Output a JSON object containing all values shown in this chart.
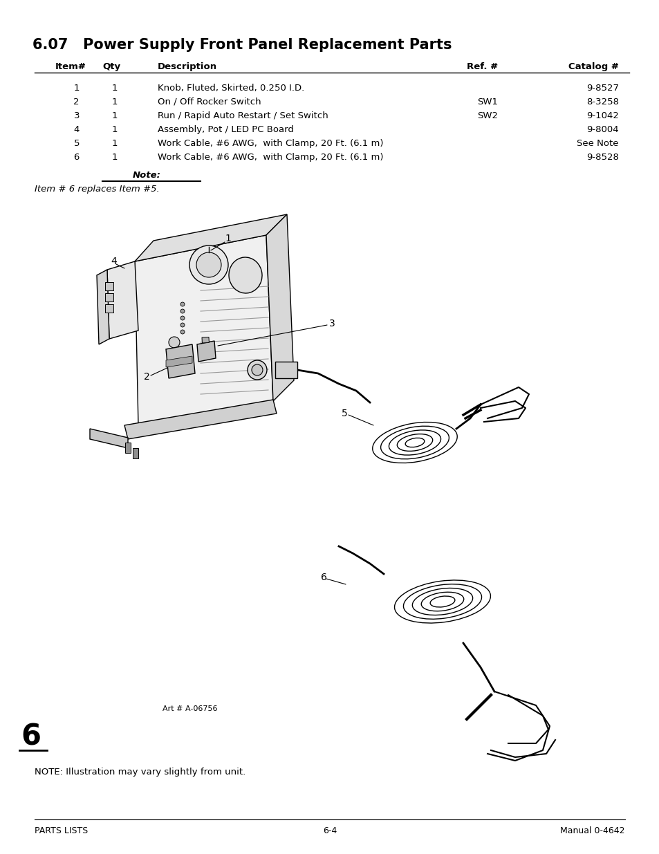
{
  "title": "6.07   Power Supply Front Panel Replacement Parts",
  "table_headers": [
    "Item#",
    "Qty",
    "Description",
    "Ref. #",
    "Catalog #"
  ],
  "table_rows": [
    [
      "1",
      "1",
      "Knob, Fluted, Skirted, 0.250 I.D.",
      "",
      "9-8527"
    ],
    [
      "2",
      "1",
      "On / Off Rocker Switch",
      "SW1",
      "8-3258"
    ],
    [
      "3",
      "1",
      "Run / Rapid Auto Restart / Set Switch",
      "SW2",
      "9-1042"
    ],
    [
      "4",
      "1",
      "Assembly, Pot / LED PC Board",
      "",
      "9-8004"
    ],
    [
      "5",
      "1",
      "Work Cable, #6 AWG,  with Clamp, 20 Ft. (6.1 m)",
      "",
      "See Note"
    ],
    [
      "6",
      "1",
      "Work Cable, #6 AWG,  with Clamp, 20 Ft. (6.1 m)",
      "",
      "9-8528"
    ]
  ],
  "note_label": "Note:",
  "note_text": "Item # 6 replaces Item #5.",
  "art_label": "Art # A-06756",
  "page_left": "PARTS LISTS",
  "page_center": "6-4",
  "page_right": "Manual 0-4642",
  "section_number": "6",
  "bottom_note": "NOTE: Illustration may vary slightly from unit.",
  "bg_color": "#ffffff",
  "text_color": "#000000"
}
